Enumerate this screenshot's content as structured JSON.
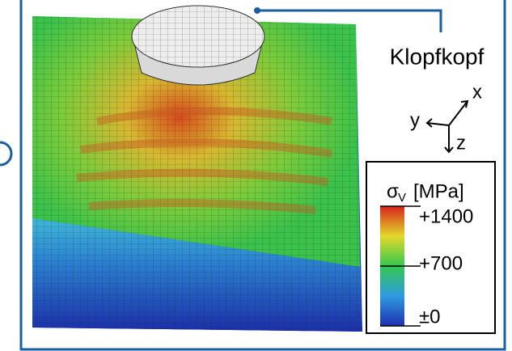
{
  "label": "Klopfkopf",
  "axes": {
    "x": "x",
    "y": "y",
    "z": "z"
  },
  "colorbar": {
    "title": "σ",
    "subscript": "V",
    "unit": "[MPa]",
    "lim": [
      0,
      1400
    ],
    "ticks": [
      {
        "value": 0,
        "label": "±0"
      },
      {
        "value": 700,
        "label": "+700"
      },
      {
        "value": 1400,
        "label": "+1400"
      }
    ]
  }
}
